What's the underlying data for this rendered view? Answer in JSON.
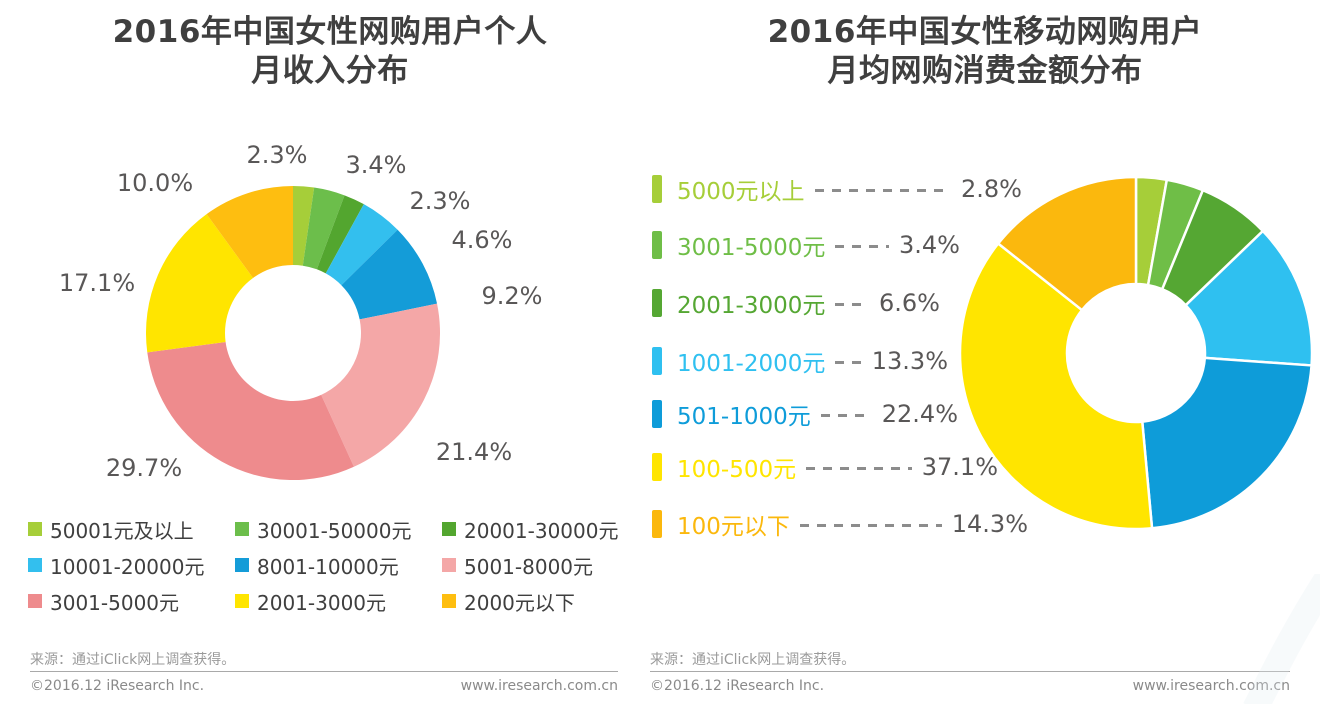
{
  "footer": {
    "source": "来源：通过iClick网上调查获得。",
    "copyright": "©2016.12 iResearch Inc.",
    "website": "www.iresearch.com.cn"
  },
  "text_colors": {
    "title": "#3f3f3f",
    "percent_label": "#595757",
    "legend_label": "#3f3f3f",
    "footer": "#8a8a8a",
    "leader_dash": "#8c8c8c"
  },
  "chart_data": [
    {
      "type": "pie",
      "donut": true,
      "title": "2016年中国女性网购用户个人月收入分布",
      "title_lines": [
        "2016年中国女性网购用户个人",
        "月收入分布"
      ],
      "legend_position": "bottom",
      "categories": [
        "50001元及以上",
        "30001-50000元",
        "20001-30000元",
        "10001-20000元",
        "8001-10000元",
        "5001-8000元",
        "3001-5000元",
        "2001-3000元",
        "2000元以下"
      ],
      "values": [
        2.3,
        3.4,
        2.3,
        4.6,
        9.2,
        21.4,
        29.7,
        17.1,
        10.0
      ],
      "labels": [
        "2.3%",
        "3.4%",
        "2.3%",
        "4.6%",
        "9.2%",
        "21.4%",
        "29.7%",
        "17.1%",
        "10.0%"
      ],
      "colors": [
        "#A6CE39",
        "#6CBE4B",
        "#53A62F",
        "#33BFEE",
        "#149CD8",
        "#F4A7A7",
        "#EE8B8D",
        "#FFE500",
        "#FEBE10"
      ]
    },
    {
      "type": "pie",
      "donut": true,
      "title": "2016年中国女性移动网购用户月均网购消费金额分布",
      "title_lines": [
        "2016年中国女性移动网购用户",
        "月均网购消费金额分布"
      ],
      "legend_position": "left",
      "categories": [
        "5000元以上",
        "3001-5000元",
        "2001-3000元",
        "1001-2000元",
        "501-1000元",
        "100-500元",
        "100元以下"
      ],
      "values": [
        2.8,
        3.4,
        6.6,
        13.3,
        22.4,
        37.1,
        14.3
      ],
      "labels": [
        "2.8%",
        "3.4%",
        "6.6%",
        "13.3%",
        "22.4%",
        "37.1%",
        "14.3%"
      ],
      "colors": [
        "#A6CE39",
        "#6FBE47",
        "#55A733",
        "#2FC0F0",
        "#0E9CD9",
        "#FFE500",
        "#FBB80D"
      ]
    }
  ]
}
